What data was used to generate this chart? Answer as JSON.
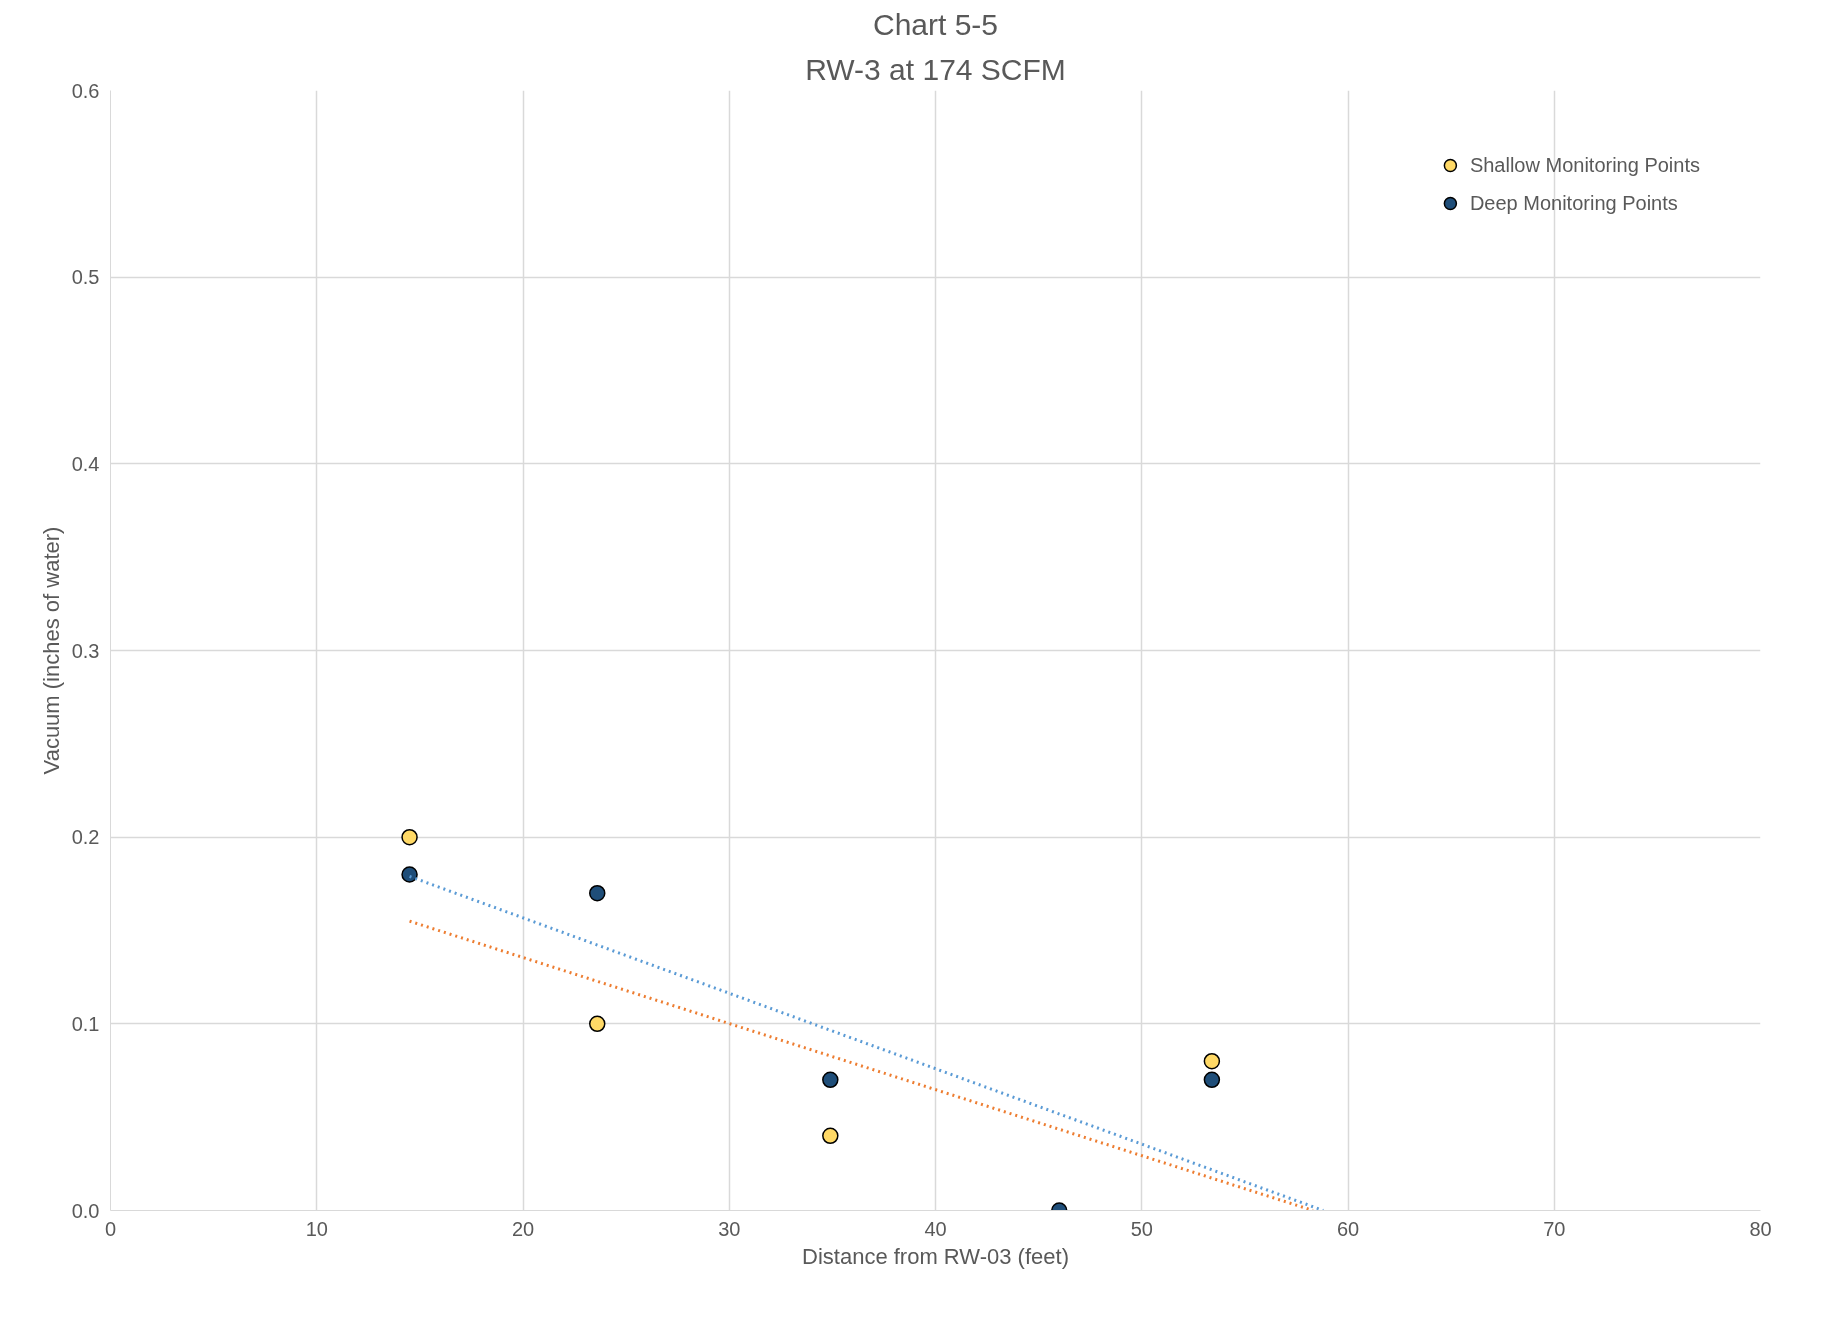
{
  "chart_data": {
    "type": "scatter",
    "title": "Chart 5-5",
    "subtitle": "RW-3 at 174 SCFM",
    "xlabel": "Distance from RW-03 (feet)",
    "ylabel": "Vacuum (inches of water)",
    "xlim": [
      0,
      80
    ],
    "xticks": [
      0,
      10,
      20,
      30,
      40,
      50,
      60,
      70,
      80
    ],
    "ylim": [
      0,
      0.6
    ],
    "yticks": [
      {
        "value": 0,
        "label": "0.0"
      },
      {
        "value": 0.1,
        "label": "0.1"
      },
      {
        "value": 0.2,
        "label": "0.2"
      },
      {
        "value": 0.3,
        "label": "0.3"
      },
      {
        "value": 0.4,
        "label": "0.4"
      },
      {
        "value": 0.5,
        "label": "0.5"
      },
      {
        "value": 0.6,
        "label": "0.6"
      }
    ],
    "grid": true,
    "legend": "top right",
    "series": [
      {
        "name": "Shallow Monitoring Points",
        "color": "#ffd966",
        "marker": "circle",
        "x": [
          14.5,
          23.6,
          34.9,
          53.4
        ],
        "values": [
          0.2,
          0.1,
          0.04,
          0.08
        ]
      },
      {
        "name": "Deep Monitoring Points",
        "color": "#1f4e79",
        "marker": "circle",
        "x": [
          14.5,
          23.6,
          34.9,
          46,
          53.4
        ],
        "values": [
          0.18,
          0.17,
          0.07,
          0,
          0.07
        ]
      },
      {
        "type": "line",
        "color": "#ed7d31",
        "line_style": "dotted",
        "x": [
          14.5,
          58.3
        ],
        "values": [
          0.155,
          0
        ]
      },
      {
        "type": "line",
        "color": "#5b9bd5",
        "line_style": "dotted",
        "x": [
          14.5,
          58.8
        ],
        "values": [
          0.179,
          0
        ]
      }
    ]
  }
}
